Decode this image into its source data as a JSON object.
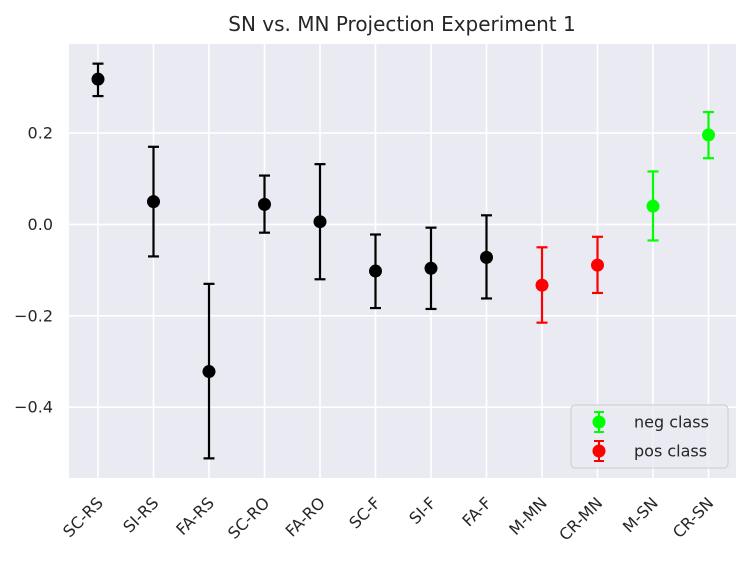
{
  "chart_data": {
    "type": "errorbar",
    "title": "SN vs. MN Projection Experiment 1",
    "xlabel": "",
    "ylabel": "",
    "ylim": [
      -0.555,
      0.395
    ],
    "yticks": [
      -0.4,
      -0.2,
      0.0,
      0.2
    ],
    "ytick_labels": [
      "−0.4",
      "−0.2",
      "0.0",
      "0.2"
    ],
    "grid": true,
    "legend_position": "lower-right",
    "categories": [
      "SC-RS",
      "SI-RS",
      "FA-RS",
      "SC-RO",
      "FA-RO",
      "SC-F",
      "SI-F",
      "FA-F",
      "M-MN",
      "CR-MN",
      "M-SN",
      "CR-SN"
    ],
    "points": [
      {
        "label": "SC-RS",
        "value": 0.318,
        "low": 0.281,
        "high": 0.352,
        "group": "other"
      },
      {
        "label": "SI-RS",
        "value": 0.05,
        "low": -0.07,
        "high": 0.17,
        "group": "other"
      },
      {
        "label": "FA-RS",
        "value": -0.322,
        "low": -0.512,
        "high": -0.13,
        "group": "other"
      },
      {
        "label": "SC-RO",
        "value": 0.044,
        "low": -0.018,
        "high": 0.107,
        "group": "other"
      },
      {
        "label": "FA-RO",
        "value": 0.006,
        "low": -0.12,
        "high": 0.132,
        "group": "other"
      },
      {
        "label": "SC-F",
        "value": -0.102,
        "low": -0.183,
        "high": -0.022,
        "group": "other"
      },
      {
        "label": "SI-F",
        "value": -0.096,
        "low": -0.185,
        "high": -0.007,
        "group": "other"
      },
      {
        "label": "FA-F",
        "value": -0.072,
        "low": -0.162,
        "high": 0.02,
        "group": "other"
      },
      {
        "label": "M-MN",
        "value": -0.133,
        "low": -0.215,
        "high": -0.05,
        "group": "pos"
      },
      {
        "label": "CR-MN",
        "value": -0.089,
        "low": -0.15,
        "high": -0.027,
        "group": "pos"
      },
      {
        "label": "M-SN",
        "value": 0.04,
        "low": -0.035,
        "high": 0.116,
        "group": "neg"
      },
      {
        "label": "CR-SN",
        "value": 0.196,
        "low": 0.145,
        "high": 0.246,
        "group": "neg"
      }
    ],
    "series": [
      {
        "name": "neg class",
        "color": "#00ff00",
        "group": "neg"
      },
      {
        "name": "pos class",
        "color": "#ff0000",
        "group": "pos"
      }
    ],
    "colors": {
      "other": "#000000",
      "neg": "#00ff00",
      "pos": "#ff0000",
      "background": "#eaeaf2",
      "grid": "#ffffff"
    }
  }
}
